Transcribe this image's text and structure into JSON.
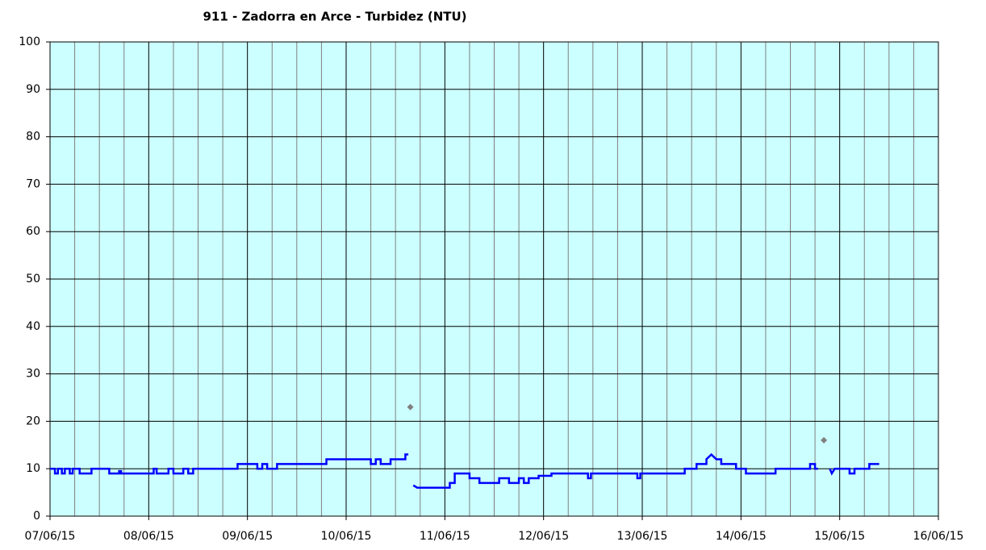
{
  "chart_data": {
    "type": "line",
    "title": "911 - Zadorra en Arce - Turbidez (NTU)",
    "xlim": [
      0,
      9
    ],
    "xticks": [
      {
        "value": 0,
        "label": "07/06/15"
      },
      {
        "value": 1,
        "label": "08/06/15"
      },
      {
        "value": 2,
        "label": "09/06/15"
      },
      {
        "value": 3,
        "label": "10/06/15"
      },
      {
        "value": 4,
        "label": "11/06/15"
      },
      {
        "value": 5,
        "label": "12/06/15"
      },
      {
        "value": 6,
        "label": "13/06/15"
      },
      {
        "value": 7,
        "label": "14/06/15"
      },
      {
        "value": 8,
        "label": "15/06/15"
      },
      {
        "value": 9,
        "label": "16/06/15"
      }
    ],
    "xminorticks": [
      0.25,
      0.5,
      0.75,
      1.25,
      1.5,
      1.75,
      2.25,
      2.5,
      2.75,
      3.25,
      3.5,
      3.75,
      4.25,
      4.5,
      4.75,
      5.25,
      5.5,
      5.75,
      6.25,
      6.5,
      6.75,
      7.25,
      7.5,
      7.75,
      8.25,
      8.5,
      8.75
    ],
    "ylim": [
      0,
      100
    ],
    "yticks": [
      0,
      10,
      20,
      30,
      40,
      50,
      60,
      70,
      80,
      90,
      100
    ],
    "grid": true,
    "background": "#ccffff",
    "series": [
      {
        "color": "#0000ff",
        "x": [
          0,
          0.05,
          0.05,
          0.08,
          0.08,
          0.12,
          0.12,
          0.15,
          0.15,
          0.2,
          0.2,
          0.23,
          0.23,
          0.3,
          0.3,
          0.42,
          0.42,
          0.6,
          0.6,
          0.7,
          0.7,
          0.72,
          0.72,
          1.05,
          1.05,
          1.08,
          1.08,
          1.2,
          1.2,
          1.25,
          1.25,
          1.35,
          1.35,
          1.4,
          1.4,
          1.45,
          1.45,
          1.9,
          1.9,
          2.1,
          2.1,
          2.15,
          2.15,
          2.2,
          2.2,
          2.3,
          2.3,
          2.8,
          2.8,
          3.25,
          3.25,
          3.3,
          3.3,
          3.35,
          3.35,
          3.45,
          3.45,
          3.6,
          3.6,
          3.63,
          3.65,
          3.68,
          3.72,
          4.05,
          4.05,
          4.1,
          4.1,
          4.25,
          4.25,
          4.35,
          4.35,
          4.55,
          4.55,
          4.65,
          4.65,
          4.75,
          4.75,
          4.8,
          4.8,
          4.85,
          4.85,
          4.95,
          4.95,
          5.08,
          5.08,
          5.45,
          5.45,
          5.48,
          5.48,
          5.95,
          5.95,
          5.98,
          5.98,
          6.43,
          6.43,
          6.55,
          6.55,
          6.65,
          6.65,
          6.7,
          6.75,
          6.8,
          6.8,
          6.95,
          6.95,
          7.05,
          7.05,
          7.35,
          7.35,
          7.7,
          7.7,
          7.75,
          7.75,
          7.78,
          7.84,
          7.9,
          7.92,
          7.95,
          8.1,
          8.1,
          8.15,
          8.15,
          8.3,
          8.3,
          8.4
        ],
        "values": [
          10,
          10,
          9,
          9,
          10,
          10,
          9,
          9,
          10,
          10,
          9,
          9,
          10,
          10,
          9,
          9,
          10,
          10,
          9,
          9,
          9.5,
          9.5,
          9,
          9,
          10,
          10,
          9,
          9,
          10,
          10,
          9,
          9,
          10,
          10,
          9,
          9,
          10,
          10,
          11,
          11,
          10,
          10,
          11,
          11,
          10,
          10,
          11,
          11,
          12,
          12,
          11,
          11,
          12,
          12,
          11,
          11,
          12,
          12,
          13,
          13,
          null,
          6.5,
          6,
          6,
          7,
          7,
          9,
          9,
          8,
          8,
          7,
          7,
          8,
          8,
          7,
          7,
          8,
          8,
          7,
          7,
          8,
          8,
          8.5,
          8.5,
          9,
          9,
          8,
          8,
          9,
          9,
          8,
          8,
          9,
          9,
          10,
          10,
          11,
          11,
          12,
          13,
          12,
          12,
          11,
          11,
          10,
          10,
          9,
          9,
          10,
          10,
          11,
          11,
          10,
          10,
          null,
          10,
          9,
          10,
          10,
          9,
          9,
          10,
          10,
          11,
          11
        ]
      },
      {
        "color": "#808080",
        "markers_only": true,
        "x": [
          3.65,
          7.84
        ],
        "values": [
          23,
          16
        ]
      }
    ]
  }
}
